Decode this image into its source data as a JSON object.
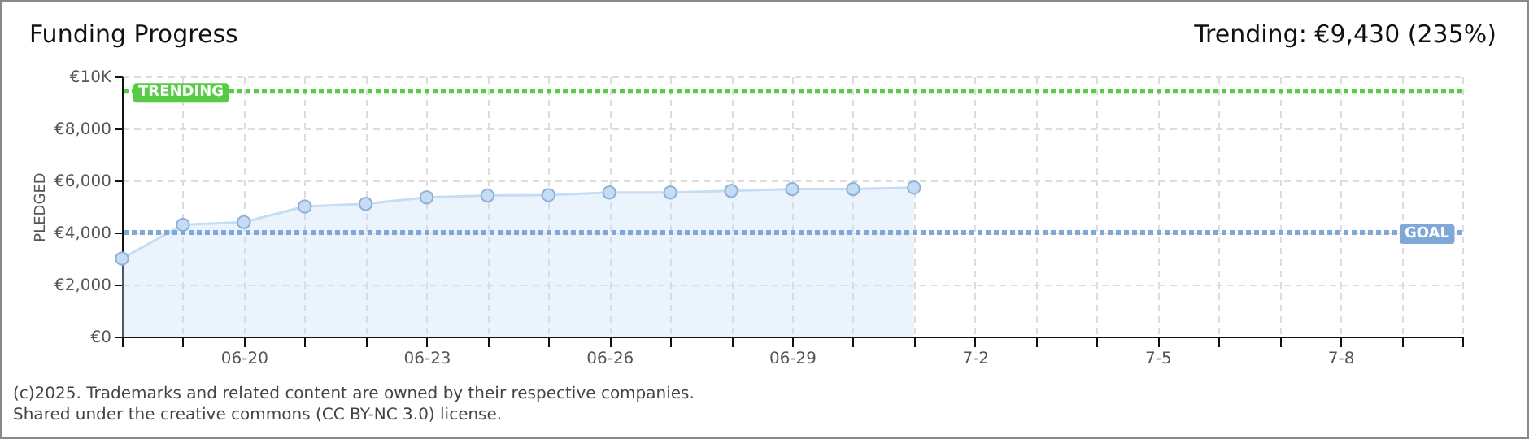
{
  "chart_data": {
    "type": "area",
    "title": "Funding Progress",
    "ylabel": "PLEDGED",
    "annotations": [
      "Trending: €9,430 (235%)",
      "(c)2025. Trademarks and related content are owned by their respective companies.",
      "Shared under the creative commons (CC BY-NC 3.0) license."
    ],
    "x": [
      "--06-18",
      "--06-19",
      "--06-20",
      "--06-21",
      "--06-22",
      "--06-23",
      "--06-24",
      "--06-25",
      "--06-26",
      "--06-27",
      "--06-28",
      "--06-29",
      "--06-30",
      "--07-01"
    ],
    "series": [
      {
        "color": "#c5dcf5",
        "values": [
          3000,
          4300,
          4400,
          5000,
          5100,
          5350,
          5420,
          5440,
          5540,
          5540,
          5600,
          5670,
          5670,
          5730
        ]
      }
    ],
    "xlim": [
      "--06-18",
      "--07-10"
    ],
    "xticks": [
      {
        "value": "--06-18",
        "label": null
      },
      {
        "value": "--06-19",
        "label": null
      },
      {
        "value": "--06-20",
        "label": "06-20"
      },
      {
        "value": "--06-21",
        "label": null
      },
      {
        "value": "--06-22",
        "label": null
      },
      {
        "value": "--06-23",
        "label": "06-23"
      },
      {
        "value": "--06-24",
        "label": null
      },
      {
        "value": "--06-25",
        "label": null
      },
      {
        "value": "--06-26",
        "label": "06-26"
      },
      {
        "value": "--06-27",
        "label": null
      },
      {
        "value": "--06-28",
        "label": null
      },
      {
        "value": "--06-29",
        "label": "06-29"
      },
      {
        "value": "--06-30",
        "label": null
      },
      {
        "value": "--07-01",
        "label": null
      },
      {
        "value": "--07-02",
        "label": "7-2"
      },
      {
        "value": "--07-03",
        "label": null
      },
      {
        "value": "--07-04",
        "label": null
      },
      {
        "value": "--07-05",
        "label": "7-5"
      },
      {
        "value": "--07-06",
        "label": null
      },
      {
        "value": "--07-07",
        "label": null
      },
      {
        "value": "--07-08",
        "label": "7-8"
      },
      {
        "value": "--07-09",
        "label": null
      },
      {
        "value": "--07-10",
        "label": null
      }
    ],
    "ylim": [
      0,
      10000
    ],
    "yticks": [
      {
        "value": 0,
        "label": "€0"
      },
      {
        "value": 2000,
        "label": "€2,000"
      },
      {
        "value": 4000,
        "label": "€4,000"
      },
      {
        "value": 6000,
        "label": "€6,000"
      },
      {
        "value": 8000,
        "label": "€8,000"
      },
      {
        "value": 10000,
        "label": "€10K"
      }
    ],
    "ref_lines": [
      {
        "axis": "y",
        "value": 9430,
        "label": "TRENDING",
        "color": "#55cc44",
        "line_style": "dotted"
      },
      {
        "axis": "y",
        "value": 4000,
        "label": "GOAL",
        "color": "#7fa8d8",
        "line_style": "dotted"
      }
    ],
    "grid": true,
    "marker": "circle"
  }
}
